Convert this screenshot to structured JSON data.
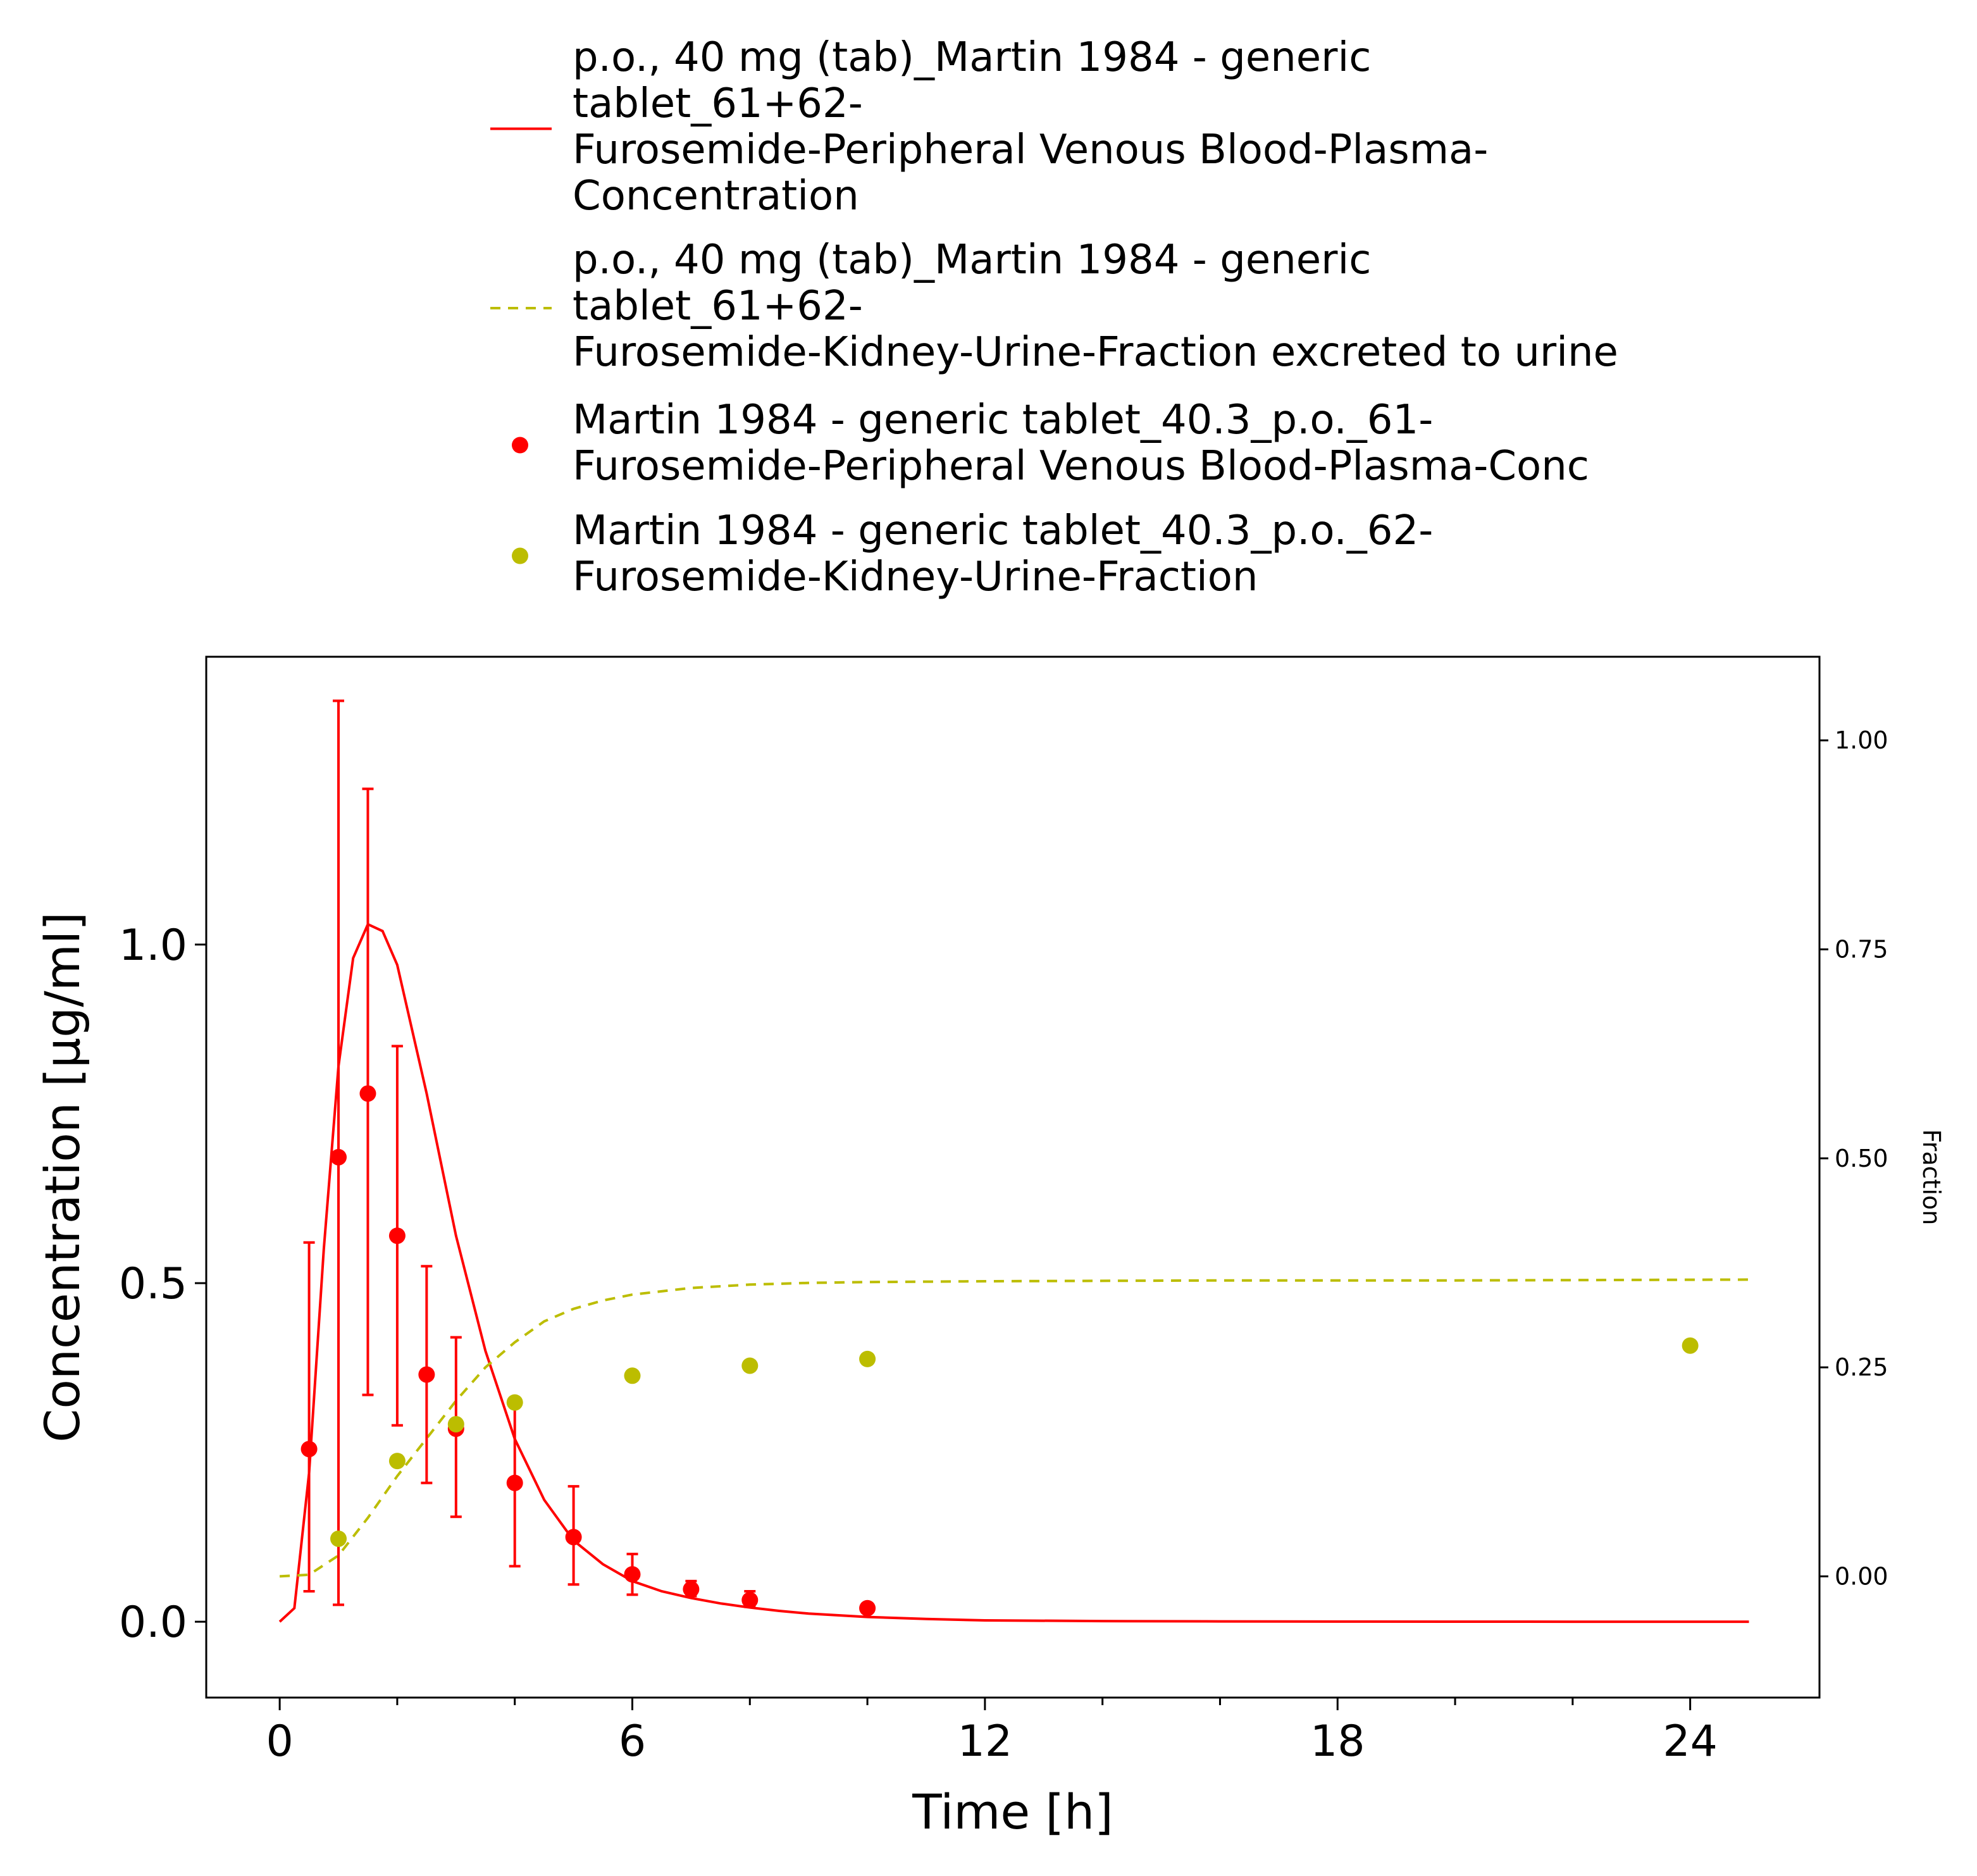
{
  "chart_data": {
    "type": "line",
    "legend": {
      "position": "top",
      "entries": [
        {
          "lines": [
            "p.o., 40 mg (tab)_Martin 1984 - generic",
            "tablet_61+62-",
            "Furosemide-Peripheral Venous Blood-Plasma-",
            "Concentration"
          ],
          "style": "solid-line",
          "color": "#ff0000"
        },
        {
          "lines": [
            "p.o., 40 mg (tab)_Martin 1984 - generic",
            "tablet_61+62-",
            "Furosemide-Kidney-Urine-Fraction excreted to urine"
          ],
          "style": "dashed-line",
          "color": "#bcbd00"
        },
        {
          "lines": [
            "Martin 1984 - generic tablet_40.3_p.o._61-",
            "Furosemide-Peripheral Venous Blood-Plasma-Conc"
          ],
          "style": "point",
          "color": "#ff0000"
        },
        {
          "lines": [
            "Martin 1984 - generic tablet_40.3_p.o._62-",
            "Furosemide-Kidney-Urine-Fraction"
          ],
          "style": "point",
          "color": "#bcbd00"
        }
      ]
    },
    "xlabel": "Time [h]",
    "ylabel": "Concentration [µg/ml]",
    "y2label": "Fraction",
    "xlim": [
      -1.25,
      26.2
    ],
    "ylim": [
      -0.112,
      1.425
    ],
    "y2lim": [
      -0.145,
      1.1
    ],
    "xticks": [
      0,
      6,
      12,
      18,
      24
    ],
    "xtick_labels": [
      "0",
      "6",
      "12",
      "18",
      "24"
    ],
    "yticks": [
      0.0,
      0.5,
      1.0
    ],
    "ytick_labels": [
      "0.0",
      "0.5",
      "1.0"
    ],
    "y2ticks": [
      0.0,
      0.25,
      0.5,
      0.75,
      1.0
    ],
    "y2tick_labels": [
      "0.00",
      "0.25",
      "0.50",
      "0.75",
      "1.00"
    ],
    "grid": false,
    "series": [
      {
        "name": "p.o., 40 mg (tab)_Martin 1984 - generic tablet_61+62-Furosemide-Peripheral Venous Blood-Plasma-Concentration",
        "axis": "left",
        "kind": "line",
        "style": "solid",
        "color": "#ff0000",
        "x": [
          0,
          0.25,
          0.5,
          0.75,
          1.0,
          1.25,
          1.5,
          1.75,
          2.0,
          2.5,
          3.0,
          3.5,
          4.0,
          4.5,
          5.0,
          5.5,
          6.0,
          6.5,
          7.0,
          7.5,
          8.0,
          8.5,
          9.0,
          10.0,
          11.0,
          12.0,
          14.0,
          16.0,
          18.0,
          20.0,
          22.0,
          24.0,
          25.0
        ],
        "y": [
          0.0,
          0.02,
          0.22,
          0.55,
          0.82,
          0.98,
          1.03,
          1.02,
          0.97,
          0.78,
          0.57,
          0.4,
          0.27,
          0.18,
          0.12,
          0.085,
          0.06,
          0.045,
          0.035,
          0.027,
          0.021,
          0.016,
          0.012,
          0.007,
          0.004,
          0.002,
          0.001,
          0.0005,
          0.0002,
          0.0001,
          0.0,
          0.0,
          0.0
        ]
      },
      {
        "name": "p.o., 40 mg (tab)_Martin 1984 - generic tablet_61+62-Furosemide-Kidney-Urine-Fraction excreted to urine",
        "axis": "right",
        "kind": "line",
        "style": "dashed",
        "color": "#bcbd00",
        "x": [
          0,
          0.5,
          1.0,
          1.5,
          2.0,
          2.5,
          3.0,
          3.5,
          4.0,
          4.5,
          5.0,
          5.5,
          6.0,
          7.0,
          8.0,
          9.0,
          10.0,
          12.0,
          16.0,
          20.0,
          25.0
        ],
        "y": [
          0.0,
          0.002,
          0.025,
          0.07,
          0.12,
          0.165,
          0.21,
          0.25,
          0.28,
          0.305,
          0.32,
          0.33,
          0.337,
          0.345,
          0.349,
          0.351,
          0.352,
          0.353,
          0.354,
          0.354,
          0.355
        ]
      },
      {
        "name": "Martin 1984 - generic tablet_40.3_p.o._61-Furosemide-Peripheral Venous Blood-Plasma-Conc",
        "axis": "left",
        "kind": "scatter",
        "color": "#ff0000",
        "x": [
          0.5,
          1.0,
          1.5,
          2.0,
          2.5,
          3.0,
          4.0,
          5.0,
          6.0,
          7.0,
          8.0,
          10.0
        ],
        "y": [
          0.255,
          0.686,
          0.78,
          0.57,
          0.365,
          0.285,
          0.205,
          0.125,
          0.07,
          0.048,
          0.032,
          0.02
        ],
        "yerr_low": [
          0.045,
          0.025,
          0.335,
          0.29,
          0.205,
          0.155,
          0.082,
          0.055,
          0.04,
          0.038,
          0.022,
          0.02
        ],
        "yerr_high": [
          0.56,
          1.36,
          1.23,
          0.85,
          0.525,
          0.42,
          0.33,
          0.2,
          0.1,
          0.06,
          0.045,
          0.02
        ]
      },
      {
        "name": "Martin 1984 - generic tablet_40.3_p.o._62-Furosemide-Kidney-Urine-Fraction",
        "axis": "right",
        "kind": "scatter",
        "color": "#bcbd00",
        "x": [
          1.0,
          2.0,
          3.0,
          4.0,
          6.0,
          8.0,
          10.0,
          24.0
        ],
        "y": [
          0.045,
          0.138,
          0.182,
          0.208,
          0.24,
          0.252,
          0.26,
          0.276
        ]
      }
    ]
  }
}
